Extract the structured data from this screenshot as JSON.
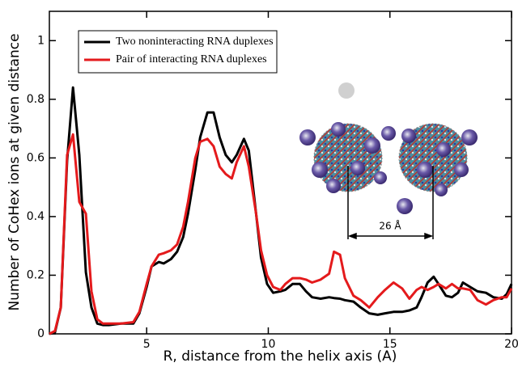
{
  "chart_data": {
    "type": "line",
    "x_label": "R, distance from the helix axis (A)",
    "y_label": "Number of CoHex ions at given distance",
    "annotation": "26 Å",
    "x": [
      1,
      1.23,
      1.47,
      1.73,
      1.97,
      2.23,
      2.5,
      2.73,
      2.97,
      3.2,
      3.45,
      3.95,
      4.45,
      4.7,
      5,
      5.2,
      5.5,
      5.7,
      6,
      6.25,
      6.5,
      6.7,
      7,
      7.2,
      7.5,
      7.75,
      8,
      8.25,
      8.5,
      8.7,
      9,
      9.2,
      9.5,
      9.7,
      9.95,
      10.2,
      10.5,
      10.7,
      11,
      11.3,
      11.55,
      11.8,
      12.15,
      12.5,
      12.7,
      12.95,
      13.15,
      13.5,
      13.8,
      14.15,
      14.5,
      14.8,
      15.15,
      15.5,
      15.8,
      16.1,
      16.3,
      16.55,
      16.8,
      17,
      17.3,
      17.55,
      17.8,
      18,
      18.3,
      18.6,
      18.95,
      19.25,
      19.6,
      19.8,
      20
    ],
    "series": [
      {
        "name": "Two noninteracting RNA duplexes",
        "color": "#000000",
        "values": [
          0,
          0.005,
          0.09,
          0.59,
          0.84,
          0.61,
          0.21,
          0.09,
          0.035,
          0.03,
          0.03,
          0.035,
          0.035,
          0.07,
          0.16,
          0.23,
          0.245,
          0.24,
          0.255,
          0.28,
          0.33,
          0.41,
          0.56,
          0.67,
          0.755,
          0.755,
          0.67,
          0.61,
          0.585,
          0.61,
          0.665,
          0.625,
          0.41,
          0.26,
          0.17,
          0.14,
          0.145,
          0.15,
          0.17,
          0.17,
          0.145,
          0.125,
          0.12,
          0.125,
          0.122,
          0.12,
          0.115,
          0.11,
          0.09,
          0.07,
          0.065,
          0.07,
          0.075,
          0.075,
          0.08,
          0.09,
          0.125,
          0.175,
          0.195,
          0.17,
          0.13,
          0.125,
          0.14,
          0.175,
          0.16,
          0.145,
          0.14,
          0.125,
          0.12,
          0.135,
          0.17
        ]
      },
      {
        "name": "Pair of interacting RNA duplexes",
        "color": "#e41a1c",
        "values": [
          0,
          0.01,
          0.09,
          0.61,
          0.68,
          0.45,
          0.41,
          0.145,
          0.05,
          0.035,
          0.035,
          0.035,
          0.04,
          0.075,
          0.17,
          0.23,
          0.27,
          0.275,
          0.285,
          0.305,
          0.365,
          0.45,
          0.6,
          0.655,
          0.665,
          0.64,
          0.57,
          0.545,
          0.53,
          0.585,
          0.64,
          0.57,
          0.41,
          0.285,
          0.2,
          0.16,
          0.15,
          0.17,
          0.19,
          0.19,
          0.185,
          0.175,
          0.185,
          0.205,
          0.28,
          0.27,
          0.19,
          0.13,
          0.115,
          0.09,
          0.125,
          0.15,
          0.175,
          0.155,
          0.12,
          0.15,
          0.16,
          0.15,
          0.16,
          0.17,
          0.155,
          0.17,
          0.155,
          0.155,
          0.15,
          0.115,
          0.1,
          0.115,
          0.125,
          0.125,
          0.155
        ]
      }
    ],
    "xlim": [
      1,
      20
    ],
    "xticks": [
      5,
      10,
      15,
      20
    ],
    "ylim": [
      0,
      1.1
    ],
    "yticks": [
      0,
      0.2,
      0.4,
      0.6,
      0.8,
      1
    ],
    "grid": false
  }
}
